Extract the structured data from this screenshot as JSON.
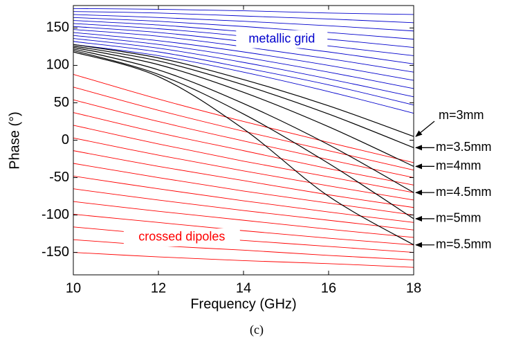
{
  "chart_data": {
    "type": "line",
    "xlabel": "Frequency (GHz)",
    "ylabel": "Phase (°)",
    "caption": "(c)",
    "x": [
      10,
      12,
      14,
      16,
      18
    ],
    "xlim": [
      10,
      18
    ],
    "xticks": [
      10,
      12,
      14,
      16,
      18
    ],
    "ylim": [
      -180,
      180
    ],
    "yticks": [
      -150,
      -100,
      -50,
      0,
      50,
      100,
      150
    ],
    "grid": false,
    "annotations": [
      {
        "text": "metallic grid",
        "color": "#0000cc"
      },
      {
        "text": "crossed dipoles",
        "color": "#ff0000"
      }
    ],
    "series": [
      {
        "color": "#0000cc",
        "values": [
          176,
          175,
          173,
          170,
          168
        ]
      },
      {
        "color": "#0000cc",
        "values": [
          172,
          170,
          166,
          162,
          157
        ]
      },
      {
        "color": "#0000cc",
        "values": [
          168,
          164,
          159,
          153,
          146
        ]
      },
      {
        "color": "#0000cc",
        "values": [
          164,
          159,
          152,
          144,
          135
        ]
      },
      {
        "color": "#0000cc",
        "values": [
          160,
          154,
          145,
          135,
          124
        ]
      },
      {
        "color": "#0000cc",
        "values": [
          156,
          149,
          139,
          126,
          113
        ]
      },
      {
        "color": "#0000cc",
        "values": [
          152,
          144,
          132,
          118,
          102
        ]
      },
      {
        "color": "#0000cc",
        "values": [
          148,
          139,
          125,
          109,
          91
        ]
      },
      {
        "color": "#0000cc",
        "values": [
          144,
          133,
          118,
          100,
          80
        ]
      },
      {
        "color": "#0000cc",
        "values": [
          140,
          128,
          111,
          91,
          69
        ]
      },
      {
        "color": "#0000cc",
        "values": [
          136,
          123,
          104,
          82,
          58
        ]
      },
      {
        "color": "#0000cc",
        "values": [
          132,
          118,
          97,
          74,
          47
        ]
      },
      {
        "color": "#0000cc",
        "values": [
          128,
          113,
          91,
          65,
          36
        ]
      },
      {
        "color": "#ff0000",
        "values": [
          88,
          55,
          25,
          -3,
          -30
        ]
      },
      {
        "color": "#ff0000",
        "values": [
          71,
          40,
          12,
          -14,
          -40
        ]
      },
      {
        "color": "#ff0000",
        "values": [
          54,
          25,
          -1,
          -26,
          -50
        ]
      },
      {
        "color": "#ff0000",
        "values": [
          37,
          10,
          -14,
          -38,
          -60
        ]
      },
      {
        "color": "#ff0000",
        "values": [
          20,
          -5,
          -28,
          -49,
          -70
        ]
      },
      {
        "color": "#ff0000",
        "values": [
          3,
          -20,
          -41,
          -61,
          -80
        ]
      },
      {
        "color": "#ff0000",
        "values": [
          -14,
          -35,
          -54,
          -73,
          -90
        ]
      },
      {
        "color": "#ff0000",
        "values": [
          -31,
          -50,
          -68,
          -84,
          -100
        ]
      },
      {
        "color": "#ff0000",
        "values": [
          -48,
          -65,
          -81,
          -96,
          -110
        ]
      },
      {
        "color": "#ff0000",
        "values": [
          -65,
          -80,
          -94,
          -107,
          -120
        ]
      },
      {
        "color": "#ff0000",
        "values": [
          -82,
          -95,
          -107,
          -119,
          -130
        ]
      },
      {
        "color": "#ff0000",
        "values": [
          -99,
          -110,
          -121,
          -131,
          -140
        ]
      },
      {
        "color": "#ff0000",
        "values": [
          -116,
          -126,
          -134,
          -142,
          -150
        ]
      },
      {
        "color": "#ff0000",
        "values": [
          -133,
          -141,
          -147,
          -154,
          -160
        ]
      },
      {
        "color": "#ff0000",
        "values": [
          -150,
          -156,
          -161,
          -165,
          -170
        ]
      },
      {
        "name": "m=3mm",
        "color": "#000000",
        "values": [
          128,
          110,
          81,
          46,
          5
        ]
      },
      {
        "name": "m=3.5mm",
        "color": "#000000",
        "values": [
          126,
          106,
          74,
          35,
          -10
        ]
      },
      {
        "name": "m=4mm",
        "color": "#000000",
        "values": [
          124,
          101,
          64,
          18,
          -35
        ]
      },
      {
        "name": "m=4.5mm",
        "color": "#000000",
        "values": [
          122,
          94,
          49,
          -6,
          -70
        ]
      },
      {
        "name": "m=5mm",
        "color": "#000000",
        "values": [
          120,
          88,
          35,
          -31,
          -105
        ]
      },
      {
        "name": "m=5.5mm",
        "color": "#000000",
        "values": [
          118,
          85,
          15,
          -75,
          -140
        ]
      }
    ]
  }
}
